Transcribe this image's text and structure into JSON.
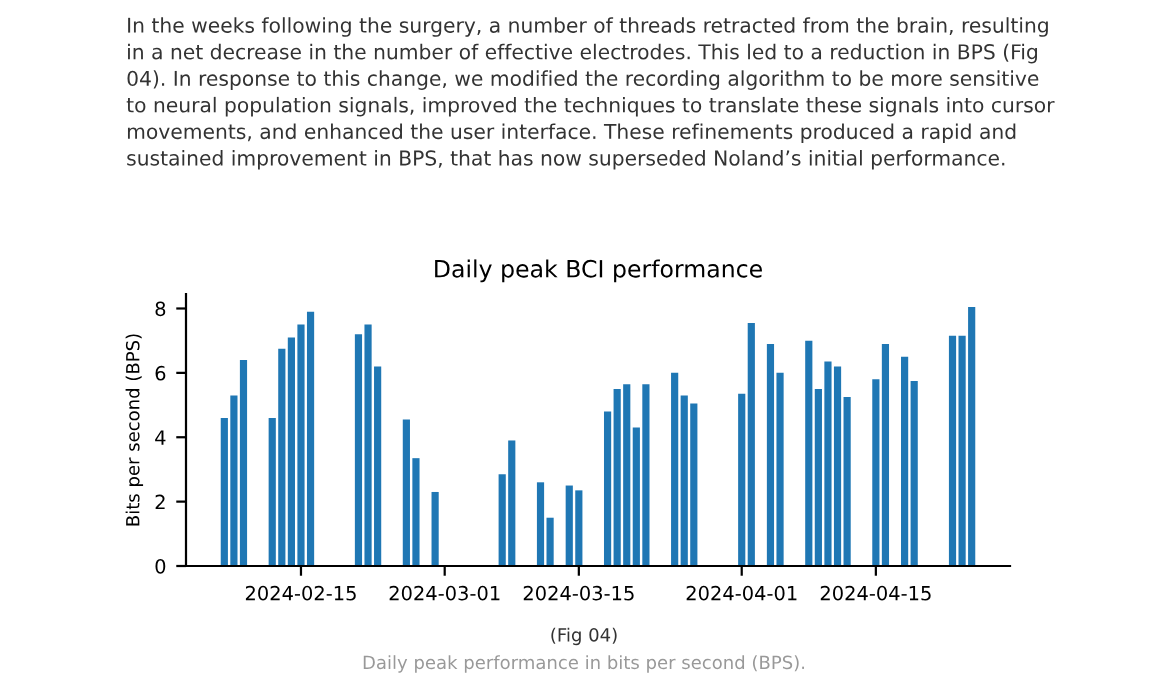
{
  "chart_data": {
    "type": "bar",
    "title": "Daily peak BCI performance",
    "ylabel": "Bits per second (BPS)",
    "annotations": [
      "In the weeks following the surgery, a number of threads retracted from the brain, resulting\nin a net decrease in the number of effective electrodes. This led to a reduction in BPS (Fig\n04). In response to this change, we modified the recording algorithm to be more sensitive\nto neural population signals, improved the techniques to translate these signals into cursor\nmovements, and enhanced the user interface. These refinements produced a rapid and\nsustained improvement in BPS, that has now superseded Noland’s initial performance.",
      "(Fig 04)",
      "Daily peak performance in bits per second (BPS)."
    ],
    "x": [
      "2024-02-07",
      "2024-02-08",
      "2024-02-09",
      "2024-02-12",
      "2024-02-13",
      "2024-02-14",
      "2024-02-15",
      "2024-02-16",
      "2024-02-21",
      "2024-02-22",
      "2024-02-23",
      "2024-02-26",
      "2024-02-27",
      "2024-02-29",
      "2024-03-07",
      "2024-03-08",
      "2024-03-11",
      "2024-03-12",
      "2024-03-14",
      "2024-03-15",
      "2024-03-18",
      "2024-03-19",
      "2024-03-20",
      "2024-03-21",
      "2024-03-22",
      "2024-03-25",
      "2024-03-26",
      "2024-03-27",
      "2024-04-01",
      "2024-04-02",
      "2024-04-04",
      "2024-04-05",
      "2024-04-08",
      "2024-04-09",
      "2024-04-10",
      "2024-04-11",
      "2024-04-12",
      "2024-04-15",
      "2024-04-16",
      "2024-04-18",
      "2024-04-19",
      "2024-04-23",
      "2024-04-24",
      "2024-04-25"
    ],
    "values": [
      4.6,
      5.3,
      6.4,
      4.6,
      6.75,
      7.1,
      7.5,
      7.9,
      7.2,
      7.5,
      6.2,
      4.55,
      3.35,
      2.3,
      2.85,
      3.9,
      2.6,
      1.5,
      2.5,
      2.35,
      4.8,
      5.5,
      5.65,
      4.3,
      5.65,
      6.0,
      5.3,
      5.05,
      5.35,
      7.55,
      6.9,
      6.0,
      7.0,
      5.5,
      6.35,
      6.2,
      5.25,
      5.8,
      6.9,
      6.5,
      5.75,
      7.15,
      7.15,
      8.05
    ],
    "color": "#1f77b4",
    "xlim": [
      "2024-02-03",
      "2024-04-29"
    ],
    "xticks": [
      "2024-02-15",
      "2024-03-01",
      "2024-03-15",
      "2024-04-01",
      "2024-04-15"
    ],
    "ylim": [
      0,
      8.45
    ],
    "yticks": [
      0,
      2,
      4,
      6,
      8
    ],
    "grid": false
  }
}
